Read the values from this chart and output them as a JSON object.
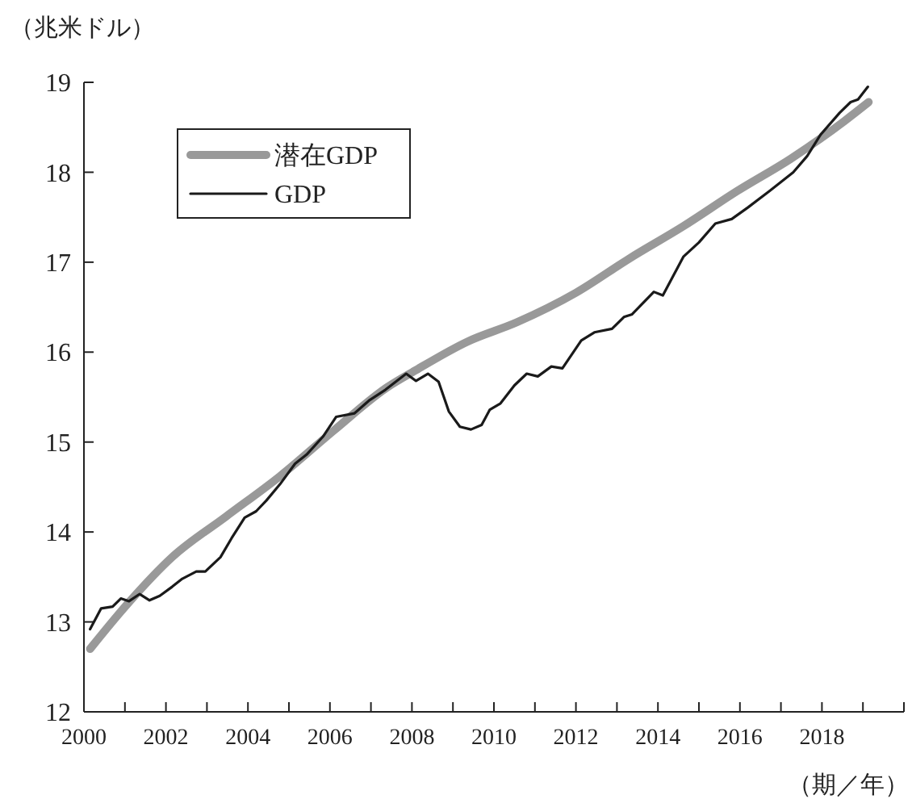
{
  "chart_data": {
    "type": "line",
    "ylabel": "（兆米ドル）",
    "xlabel": "（期／年）",
    "xlim": [
      2000,
      2020
    ],
    "ylim": [
      12,
      19
    ],
    "xticks": [
      2000,
      {
        "value": 2001,
        "label": null
      },
      2002,
      {
        "value": 2003,
        "label": null
      },
      2004,
      {
        "value": 2005,
        "label": null
      },
      2006,
      {
        "value": 2007,
        "label": null
      },
      2008,
      {
        "value": 2009,
        "label": null
      },
      2010,
      {
        "value": 2011,
        "label": null
      },
      2012,
      {
        "value": 2013,
        "label": null
      },
      2014,
      {
        "value": 2015,
        "label": null
      },
      2016,
      {
        "value": 2017,
        "label": null
      },
      2018,
      {
        "value": 2019,
        "label": null
      },
      {
        "value": 2020,
        "label": null
      }
    ],
    "yticks": [
      12,
      13,
      14,
      15,
      16,
      17,
      18,
      19
    ],
    "grid": false,
    "legend": "top left",
    "line_style": "solid",
    "series": [
      {
        "name": "潜在GDP",
        "color": "#999999",
        "x": [
          2000.15,
          2001.1,
          2002.15,
          2003.46,
          2004.78,
          2006.1,
          2007.4,
          2008.06,
          2009.37,
          2010.55,
          2012.0,
          2013.3,
          2014.62,
          2015.93,
          2017.24,
          2018.55,
          2019.14
        ],
        "values": [
          12.7,
          13.22,
          13.72,
          14.17,
          14.62,
          15.13,
          15.61,
          15.79,
          16.12,
          16.33,
          16.66,
          17.04,
          17.4,
          17.79,
          18.15,
          18.57,
          18.78
        ]
      },
      {
        "name": "GDP",
        "color": "#1a1a1a",
        "x": [
          2000.15,
          2000.42,
          2000.7,
          2000.9,
          2001.1,
          2001.36,
          2001.6,
          2001.85,
          2002.15,
          2002.4,
          2002.74,
          2002.96,
          2003.33,
          2003.6,
          2003.92,
          2004.2,
          2004.45,
          2004.78,
          2005.15,
          2005.43,
          2005.83,
          2006.15,
          2006.6,
          2006.95,
          2007.35,
          2007.86,
          2008.1,
          2008.39,
          2008.65,
          2008.9,
          2009.17,
          2009.44,
          2009.7,
          2009.9,
          2010.16,
          2010.5,
          2010.8,
          2011.07,
          2011.4,
          2011.67,
          2012.13,
          2012.45,
          2012.88,
          2013.17,
          2013.37,
          2013.9,
          2014.12,
          2014.62,
          2015.0,
          2015.4,
          2015.8,
          2016.2,
          2016.72,
          2017.3,
          2017.64,
          2017.97,
          2018.43,
          2018.7,
          2018.88,
          2019.12
        ],
        "values": [
          12.92,
          13.15,
          13.17,
          13.26,
          13.23,
          13.31,
          13.24,
          13.29,
          13.39,
          13.48,
          13.56,
          13.56,
          13.72,
          13.93,
          14.16,
          14.23,
          14.35,
          14.53,
          14.76,
          14.86,
          15.06,
          15.28,
          15.32,
          15.46,
          15.58,
          15.76,
          15.68,
          15.76,
          15.67,
          15.34,
          15.17,
          15.14,
          15.19,
          15.36,
          15.43,
          15.63,
          15.76,
          15.73,
          15.84,
          15.82,
          16.13,
          16.22,
          16.26,
          16.39,
          16.42,
          16.67,
          16.63,
          17.06,
          17.22,
          17.43,
          17.48,
          17.61,
          17.79,
          18.0,
          18.18,
          18.42,
          18.66,
          18.78,
          18.81,
          18.95
        ]
      }
    ]
  }
}
